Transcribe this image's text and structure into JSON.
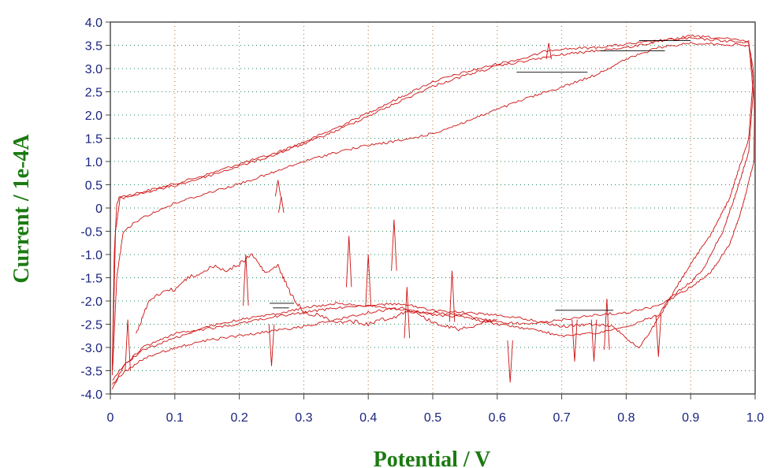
{
  "chart_data": {
    "type": "line",
    "title": "",
    "xlabel": "Potential / V",
    "ylabel": "Current / 1e-4A",
    "xlim": [
      0,
      1.0
    ],
    "ylim": [
      -4.0,
      4.0
    ],
    "x_ticks": [
      "0",
      "0.1",
      "0.2",
      "0.3",
      "0.4",
      "0.5",
      "0.6",
      "0.7",
      "0.8",
      "0.9",
      "1.0"
    ],
    "y_ticks": [
      "4.0",
      "3.5",
      "3.0",
      "2.5",
      "2.0",
      "1.5",
      "1.0",
      "0.5",
      "0",
      "-0.5",
      "-1.0",
      "-1.5",
      "-2.0",
      "-2.5",
      "-3.0",
      "-3.5",
      "-4.0"
    ],
    "grid": true,
    "legend": "none",
    "colors": {
      "trace": "#cc1111",
      "gap": "#000000",
      "axis_text": "#1a237e",
      "axis_title": "#1b7a12",
      "grid_x": "#b06a2a",
      "grid_y": "#1f8a5a"
    },
    "series": [
      {
        "values": [
          [
            0.003,
            -3.4
          ],
          [
            0.006,
            -1.0
          ],
          [
            0.01,
            0.1
          ],
          [
            0.015,
            0.25
          ],
          [
            0.03,
            0.28
          ],
          [
            0.05,
            0.35
          ],
          [
            0.1,
            0.52
          ],
          [
            0.15,
            0.72
          ],
          [
            0.2,
            0.95
          ],
          [
            0.25,
            1.15
          ],
          [
            0.3,
            1.42
          ],
          [
            0.35,
            1.72
          ],
          [
            0.4,
            2.05
          ],
          [
            0.45,
            2.38
          ],
          [
            0.5,
            2.72
          ],
          [
            0.55,
            2.92
          ],
          [
            0.6,
            3.1
          ],
          [
            0.65,
            3.25
          ],
          [
            0.68,
            3.4
          ],
          [
            0.7,
            3.42
          ],
          [
            0.75,
            3.45
          ],
          [
            0.8,
            3.52
          ],
          [
            0.85,
            3.6
          ],
          [
            0.9,
            3.65
          ],
          [
            0.95,
            3.6
          ],
          [
            0.99,
            3.55
          ],
          [
            0.997,
            3.0
          ],
          [
            0.999,
            2.0
          ],
          [
            0.998,
            1.0
          ],
          [
            0.98,
            0.0
          ],
          [
            0.96,
            -0.8
          ],
          [
            0.93,
            -1.4
          ],
          [
            0.9,
            -1.7
          ],
          [
            0.87,
            -1.95
          ],
          [
            0.85,
            -2.1
          ],
          [
            0.8,
            -2.25
          ],
          [
            0.75,
            -2.3
          ],
          [
            0.7,
            -2.4
          ],
          [
            0.65,
            -2.5
          ],
          [
            0.6,
            -2.45
          ],
          [
            0.55,
            -2.3
          ],
          [
            0.5,
            -2.25
          ],
          [
            0.45,
            -2.2
          ],
          [
            0.4,
            -2.1
          ],
          [
            0.35,
            -2.15
          ],
          [
            0.3,
            -2.25
          ],
          [
            0.25,
            -2.35
          ],
          [
            0.2,
            -2.5
          ],
          [
            0.15,
            -2.6
          ],
          [
            0.1,
            -2.7
          ],
          [
            0.05,
            -3.0
          ],
          [
            0.02,
            -3.4
          ],
          [
            0.003,
            -3.7
          ]
        ]
      },
      {
        "values": [
          [
            0.003,
            -3.5
          ],
          [
            0.008,
            -0.5
          ],
          [
            0.015,
            0.2
          ],
          [
            0.03,
            0.25
          ],
          [
            0.05,
            0.32
          ],
          [
            0.1,
            0.48
          ],
          [
            0.15,
            0.68
          ],
          [
            0.2,
            0.9
          ],
          [
            0.25,
            1.12
          ],
          [
            0.3,
            1.38
          ],
          [
            0.35,
            1.66
          ],
          [
            0.4,
            1.98
          ],
          [
            0.45,
            2.3
          ],
          [
            0.5,
            2.62
          ],
          [
            0.55,
            2.85
          ],
          [
            0.6,
            3.05
          ],
          [
            0.65,
            3.18
          ],
          [
            0.7,
            3.3
          ],
          [
            0.75,
            3.38
          ],
          [
            0.8,
            3.45
          ],
          [
            0.85,
            3.58
          ],
          [
            0.9,
            3.7
          ],
          [
            0.95,
            3.65
          ],
          [
            0.99,
            3.58
          ],
          [
            0.997,
            2.5
          ],
          [
            0.99,
            1.2
          ],
          [
            0.97,
            0.3
          ],
          [
            0.95,
            -0.5
          ],
          [
            0.92,
            -1.3
          ],
          [
            0.9,
            -1.6
          ],
          [
            0.87,
            -1.9
          ],
          [
            0.85,
            -2.3
          ],
          [
            0.8,
            -2.55
          ],
          [
            0.75,
            -2.7
          ],
          [
            0.7,
            -2.75
          ],
          [
            0.65,
            -2.6
          ],
          [
            0.6,
            -2.5
          ],
          [
            0.55,
            -2.35
          ],
          [
            0.5,
            -2.3
          ],
          [
            0.45,
            -2.15
          ],
          [
            0.4,
            -2.25
          ],
          [
            0.35,
            -2.4
          ],
          [
            0.3,
            -2.55
          ],
          [
            0.25,
            -2.65
          ],
          [
            0.2,
            -2.75
          ],
          [
            0.15,
            -2.85
          ],
          [
            0.1,
            -3.0
          ],
          [
            0.05,
            -3.25
          ],
          [
            0.02,
            -3.55
          ],
          [
            0.003,
            -3.8
          ]
        ]
      },
      {
        "values": [
          [
            0.003,
            -3.6
          ],
          [
            0.01,
            -1.5
          ],
          [
            0.02,
            -0.5
          ],
          [
            0.05,
            -0.2
          ],
          [
            0.1,
            0.1
          ],
          [
            0.15,
            0.32
          ],
          [
            0.2,
            0.52
          ],
          [
            0.25,
            0.75
          ],
          [
            0.3,
            1.0
          ],
          [
            0.35,
            1.2
          ],
          [
            0.4,
            1.35
          ],
          [
            0.45,
            1.45
          ],
          [
            0.5,
            1.6
          ],
          [
            0.55,
            1.85
          ],
          [
            0.6,
            2.12
          ],
          [
            0.65,
            2.38
          ],
          [
            0.7,
            2.6
          ],
          [
            0.75,
            2.85
          ],
          [
            0.8,
            3.2
          ],
          [
            0.85,
            3.45
          ],
          [
            0.9,
            3.55
          ],
          [
            0.95,
            3.52
          ],
          [
            0.99,
            3.5
          ],
          [
            0.997,
            2.8
          ],
          [
            0.99,
            1.5
          ],
          [
            0.96,
            0.2
          ],
          [
            0.93,
            -0.6
          ],
          [
            0.9,
            -1.2
          ],
          [
            0.87,
            -1.9
          ],
          [
            0.84,
            -2.6
          ],
          [
            0.82,
            -3.0
          ],
          [
            0.8,
            -2.8
          ],
          [
            0.78,
            -2.55
          ],
          [
            0.75,
            -2.5
          ],
          [
            0.7,
            -2.55
          ],
          [
            0.65,
            -2.4
          ],
          [
            0.6,
            -2.3
          ],
          [
            0.55,
            -2.25
          ],
          [
            0.5,
            -2.2
          ],
          [
            0.45,
            -2.05
          ],
          [
            0.4,
            -2.1
          ],
          [
            0.35,
            -2.05
          ],
          [
            0.3,
            -2.15
          ],
          [
            0.25,
            -2.3
          ],
          [
            0.2,
            -2.4
          ],
          [
            0.15,
            -2.55
          ],
          [
            0.1,
            -2.8
          ],
          [
            0.05,
            -3.05
          ],
          [
            0.02,
            -3.4
          ],
          [
            0.003,
            -3.9
          ]
        ]
      },
      {
        "values": [
          [
            0.04,
            -2.7
          ],
          [
            0.06,
            -2.0
          ],
          [
            0.08,
            -1.8
          ],
          [
            0.1,
            -1.75
          ],
          [
            0.12,
            -1.5
          ],
          [
            0.14,
            -1.4
          ],
          [
            0.16,
            -1.25
          ],
          [
            0.18,
            -1.35
          ],
          [
            0.2,
            -1.2
          ],
          [
            0.22,
            -1.0
          ],
          [
            0.24,
            -1.4
          ],
          [
            0.26,
            -1.25
          ],
          [
            0.28,
            -1.85
          ],
          [
            0.3,
            -2.25
          ],
          [
            0.32,
            -2.3
          ],
          [
            0.34,
            -2.4
          ],
          [
            0.36,
            -2.45
          ],
          [
            0.38,
            -2.45
          ],
          [
            0.4,
            -2.5
          ],
          [
            0.42,
            -2.4
          ],
          [
            0.44,
            -2.35
          ],
          [
            0.46,
            -2.2
          ],
          [
            0.48,
            -2.3
          ],
          [
            0.5,
            -2.45
          ],
          [
            0.52,
            -2.55
          ],
          [
            0.54,
            -2.6
          ],
          [
            0.56,
            -2.55
          ],
          [
            0.58,
            -2.45
          ],
          [
            0.6,
            -2.4
          ]
        ]
      }
    ],
    "spikes": [
      {
        "x": 0.027,
        "y": -2.4
      },
      {
        "x": 0.21,
        "y": -1.0
      },
      {
        "x": 0.25,
        "y": -3.4
      },
      {
        "x": 0.26,
        "y": 0.6
      },
      {
        "x": 0.265,
        "y": 0.25
      },
      {
        "x": 0.37,
        "y": -0.6
      },
      {
        "x": 0.4,
        "y": -1.0
      },
      {
        "x": 0.44,
        "y": -0.25
      },
      {
        "x": 0.46,
        "y": -1.7
      },
      {
        "x": 0.53,
        "y": -1.35
      },
      {
        "x": 0.62,
        "y": -3.75
      },
      {
        "x": 0.68,
        "y": 3.55
      },
      {
        "x": 0.72,
        "y": -3.3
      },
      {
        "x": 0.75,
        "y": -3.3
      },
      {
        "x": 0.77,
        "y": -1.95
      },
      {
        "x": 0.85,
        "y": -3.2
      }
    ],
    "gaps": [
      {
        "x1": 0.247,
        "x2": 0.285,
        "y": -2.05
      },
      {
        "x1": 0.252,
        "x2": 0.277,
        "y": -2.15
      },
      {
        "x1": 0.63,
        "x2": 0.74,
        "y": 2.92
      },
      {
        "x1": 0.69,
        "x2": 0.78,
        "y": -2.2
      },
      {
        "x1": 0.76,
        "x2": 0.86,
        "y": 3.38
      },
      {
        "x1": 0.82,
        "x2": 0.9,
        "y": 3.6
      }
    ]
  }
}
